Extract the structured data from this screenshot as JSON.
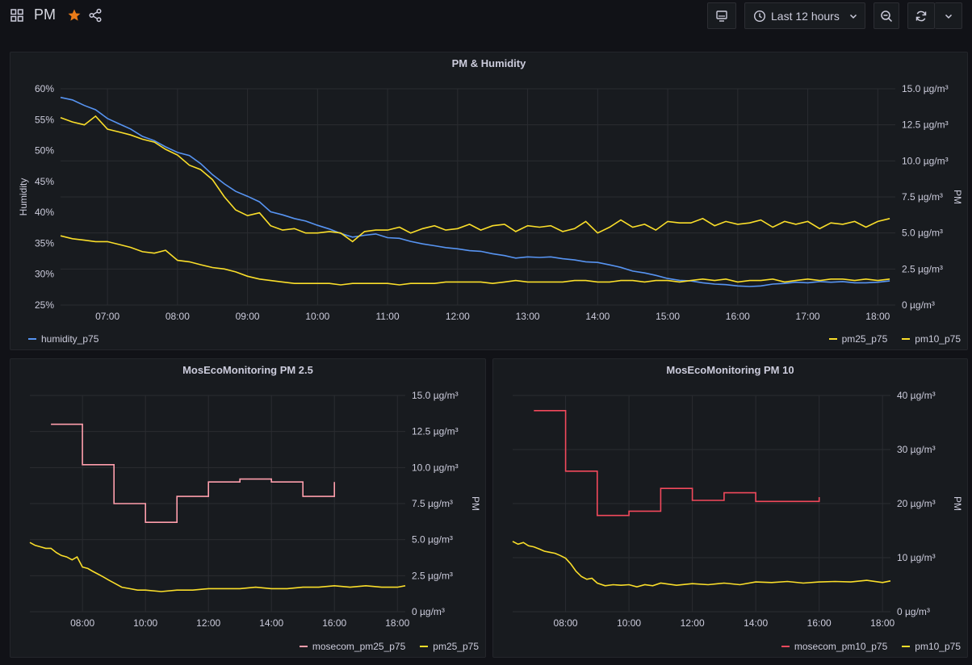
{
  "topbar": {
    "title": "PM",
    "time_range": "Last 12 hours"
  },
  "colors": {
    "humidity": "#5794f2",
    "pm25": "#fade2a",
    "pm10": "#fade2a",
    "mosecom_pm25": "#ff9eac",
    "mosecom_pm10": "#f2495c",
    "star": "#eb7b18"
  },
  "chart_data": [
    {
      "id": "pm_humidity",
      "type": "line",
      "title": "PM & Humidity",
      "ylabel": "Humidity",
      "y2label": "PM",
      "xlim": [
        6.33,
        18.25
      ],
      "ylim": [
        25,
        60
      ],
      "y2lim": [
        0,
        15
      ],
      "x_ticks": [
        "07:00",
        "08:00",
        "09:00",
        "10:00",
        "11:00",
        "12:00",
        "13:00",
        "14:00",
        "15:00",
        "16:00",
        "17:00",
        "18:00"
      ],
      "y_ticks": [
        "25%",
        "30%",
        "35%",
        "40%",
        "45%",
        "50%",
        "55%",
        "60%"
      ],
      "y2_ticks": [
        "0 µg/m³",
        "2.5 µg/m³",
        "5.0 µg/m³",
        "7.5 µg/m³",
        "10.0 µg/m³",
        "12.5 µg/m³",
        "15.0 µg/m³"
      ],
      "series": [
        {
          "name": "humidity_p75",
          "axis": "left",
          "x": [
            6.33,
            6.5,
            6.67,
            6.83,
            7.0,
            7.17,
            7.33,
            7.5,
            7.67,
            7.83,
            8.0,
            8.17,
            8.33,
            8.5,
            8.67,
            8.83,
            9.0,
            9.17,
            9.33,
            9.5,
            9.67,
            9.83,
            10.0,
            10.17,
            10.33,
            10.5,
            10.67,
            10.83,
            11.0,
            11.17,
            11.33,
            11.5,
            11.67,
            11.83,
            12.0,
            12.17,
            12.33,
            12.5,
            12.67,
            12.83,
            13.0,
            13.17,
            13.33,
            13.5,
            13.67,
            13.83,
            14.0,
            14.17,
            14.33,
            14.5,
            14.67,
            14.83,
            15.0,
            15.17,
            15.33,
            15.5,
            15.67,
            15.83,
            16.0,
            16.17,
            16.33,
            16.5,
            16.67,
            16.83,
            17.0,
            17.17,
            17.33,
            17.5,
            17.67,
            17.83,
            18.0,
            18.17
          ],
          "values": [
            58.6,
            58.2,
            57.3,
            56.6,
            55.2,
            54.3,
            53.5,
            52.3,
            51.6,
            50.6,
            49.7,
            49.2,
            47.9,
            46.1,
            44.6,
            43.4,
            42.6,
            41.7,
            40.1,
            39.6,
            39.0,
            38.6,
            37.9,
            37.3,
            36.6,
            36.0,
            36.3,
            36.5,
            35.9,
            35.8,
            35.3,
            34.9,
            34.6,
            34.3,
            34.1,
            33.8,
            33.7,
            33.3,
            33.0,
            32.6,
            32.8,
            32.7,
            32.8,
            32.5,
            32.3,
            32.0,
            31.9,
            31.5,
            31.1,
            30.5,
            30.2,
            29.8,
            29.3,
            29.0,
            28.9,
            28.6,
            28.4,
            28.3,
            28.1,
            28.0,
            28.1,
            28.4,
            28.5,
            28.7,
            28.6,
            28.8,
            28.7,
            28.8,
            28.6,
            28.6,
            28.7,
            28.9
          ]
        },
        {
          "name": "pm25_p75",
          "axis": "right",
          "x": [
            6.33,
            6.5,
            6.67,
            6.83,
            7.0,
            7.17,
            7.33,
            7.5,
            7.67,
            7.83,
            8.0,
            8.17,
            8.33,
            8.5,
            8.67,
            8.83,
            9.0,
            9.17,
            9.33,
            9.5,
            9.67,
            9.83,
            10.0,
            10.17,
            10.33,
            10.5,
            10.67,
            10.83,
            11.0,
            11.17,
            11.33,
            11.5,
            11.67,
            11.83,
            12.0,
            12.17,
            12.33,
            12.5,
            12.67,
            12.83,
            13.0,
            13.17,
            13.33,
            13.5,
            13.67,
            13.83,
            14.0,
            14.17,
            14.33,
            14.5,
            14.67,
            14.83,
            15.0,
            15.17,
            15.33,
            15.5,
            15.67,
            15.83,
            16.0,
            16.17,
            16.33,
            16.5,
            16.67,
            16.83,
            17.0,
            17.17,
            17.33,
            17.5,
            17.67,
            17.83,
            18.0,
            18.17
          ],
          "values": [
            4.8,
            4.6,
            4.5,
            4.4,
            4.4,
            4.2,
            4.0,
            3.7,
            3.6,
            3.8,
            3.1,
            3.0,
            2.8,
            2.6,
            2.5,
            2.3,
            2.0,
            1.8,
            1.7,
            1.6,
            1.5,
            1.5,
            1.5,
            1.5,
            1.4,
            1.5,
            1.5,
            1.5,
            1.5,
            1.4,
            1.5,
            1.5,
            1.5,
            1.6,
            1.6,
            1.6,
            1.6,
            1.5,
            1.6,
            1.7,
            1.6,
            1.6,
            1.6,
            1.6,
            1.7,
            1.7,
            1.6,
            1.6,
            1.7,
            1.7,
            1.6,
            1.7,
            1.7,
            1.6,
            1.7,
            1.8,
            1.7,
            1.8,
            1.6,
            1.7,
            1.7,
            1.8,
            1.6,
            1.7,
            1.8,
            1.7,
            1.8,
            1.8,
            1.7,
            1.8,
            1.7,
            1.8
          ]
        },
        {
          "name": "pm10_p75",
          "axis": "right",
          "x": [
            6.33,
            6.5,
            6.67,
            6.83,
            7.0,
            7.17,
            7.33,
            7.5,
            7.67,
            7.83,
            8.0,
            8.17,
            8.33,
            8.5,
            8.67,
            8.83,
            9.0,
            9.17,
            9.33,
            9.5,
            9.67,
            9.83,
            10.0,
            10.17,
            10.33,
            10.5,
            10.67,
            10.83,
            11.0,
            11.17,
            11.33,
            11.5,
            11.67,
            11.83,
            12.0,
            12.17,
            12.33,
            12.5,
            12.67,
            12.83,
            13.0,
            13.17,
            13.33,
            13.5,
            13.67,
            13.83,
            14.0,
            14.17,
            14.33,
            14.5,
            14.67,
            14.83,
            15.0,
            15.17,
            15.33,
            15.5,
            15.67,
            15.83,
            16.0,
            16.17,
            16.33,
            16.5,
            16.67,
            16.83,
            17.0,
            17.17,
            17.33,
            17.5,
            17.67,
            17.83,
            18.0,
            18.17
          ],
          "values": [
            13.0,
            12.7,
            12.5,
            13.1,
            12.2,
            12.0,
            11.8,
            11.5,
            11.3,
            10.8,
            10.4,
            9.7,
            9.4,
            8.7,
            7.5,
            6.6,
            6.2,
            6.4,
            5.5,
            5.2,
            5.3,
            5.0,
            5.0,
            5.1,
            5.0,
            4.4,
            5.1,
            5.2,
            5.2,
            5.4,
            5.0,
            5.3,
            5.5,
            5.2,
            5.3,
            5.6,
            5.2,
            5.5,
            5.6,
            5.1,
            5.5,
            5.4,
            5.5,
            5.1,
            5.3,
            5.8,
            5.0,
            5.4,
            5.9,
            5.4,
            5.6,
            5.2,
            5.8,
            5.7,
            5.7,
            6.0,
            5.5,
            5.8,
            5.6,
            5.7,
            5.9,
            5.4,
            5.8,
            5.6,
            5.8,
            5.3,
            5.7,
            5.6,
            5.8,
            5.4,
            5.8,
            6.0
          ]
        }
      ],
      "legend_left": [
        "humidity_p75"
      ],
      "legend_right": [
        "pm25_p75",
        "pm10_p75"
      ]
    },
    {
      "id": "mosecom_pm25",
      "type": "line",
      "title": "MosEcoMonitoring PM 2.5",
      "y2label": "PM",
      "xlim": [
        6.33,
        18.25
      ],
      "y2lim": [
        0,
        15
      ],
      "x_ticks": [
        "08:00",
        "10:00",
        "12:00",
        "14:00",
        "16:00",
        "18:00"
      ],
      "y2_ticks": [
        "0 µg/m³",
        "2.5 µg/m³",
        "5.0 µg/m³",
        "7.5 µg/m³",
        "10.0 µg/m³",
        "12.5 µg/m³",
        "15.0 µg/m³"
      ],
      "series": [
        {
          "name": "mosecom_pm25_p75",
          "step": true,
          "x": [
            7.0,
            8.0,
            9.0,
            10.0,
            11.0,
            12.0,
            13.0,
            14.0,
            15.0,
            16.0
          ],
          "values": [
            13.0,
            10.2,
            7.5,
            6.2,
            8.0,
            9.0,
            9.2,
            9.0,
            8.0,
            9.0
          ]
        },
        {
          "name": "pm25_p75",
          "x": [
            6.33,
            6.5,
            6.67,
            6.83,
            7.0,
            7.17,
            7.33,
            7.5,
            7.67,
            7.83,
            8.0,
            8.17,
            8.33,
            8.5,
            8.67,
            8.83,
            9.0,
            9.25,
            9.5,
            9.75,
            10.0,
            10.5,
            11.0,
            11.5,
            12.0,
            12.5,
            13.0,
            13.5,
            14.0,
            14.5,
            15.0,
            15.5,
            16.0,
            16.5,
            17.0,
            17.5,
            18.0,
            18.25
          ],
          "values": [
            4.8,
            4.6,
            4.5,
            4.4,
            4.4,
            4.1,
            3.9,
            3.8,
            3.6,
            3.8,
            3.1,
            3.0,
            2.8,
            2.6,
            2.4,
            2.2,
            2.0,
            1.7,
            1.6,
            1.5,
            1.5,
            1.4,
            1.5,
            1.5,
            1.6,
            1.6,
            1.6,
            1.7,
            1.6,
            1.6,
            1.7,
            1.7,
            1.8,
            1.7,
            1.8,
            1.7,
            1.7,
            1.8
          ]
        }
      ],
      "legend_right": [
        "mosecom_pm25_p75",
        "pm25_p75"
      ]
    },
    {
      "id": "mosecom_pm10",
      "type": "line",
      "title": "MosEcoMonitoring PM 10",
      "y2label": "PM",
      "xlim": [
        6.33,
        18.25
      ],
      "y2lim": [
        0,
        40
      ],
      "x_ticks": [
        "08:00",
        "10:00",
        "12:00",
        "14:00",
        "16:00",
        "18:00"
      ],
      "y2_ticks": [
        "0 µg/m³",
        "10 µg/m³",
        "20 µg/m³",
        "30 µg/m³",
        "40 µg/m³"
      ],
      "series": [
        {
          "name": "mosecom_pm10_p75",
          "step": true,
          "x": [
            7.0,
            8.0,
            9.0,
            10.0,
            11.0,
            12.0,
            13.0,
            14.0,
            15.0,
            16.0
          ],
          "values": [
            37.2,
            26.0,
            17.8,
            18.6,
            22.8,
            20.6,
            22.0,
            20.4,
            20.4,
            21.2
          ]
        },
        {
          "name": "pm10_p75",
          "x": [
            6.33,
            6.5,
            6.67,
            6.83,
            7.0,
            7.17,
            7.33,
            7.5,
            7.67,
            7.83,
            8.0,
            8.17,
            8.33,
            8.5,
            8.67,
            8.83,
            9.0,
            9.25,
            9.5,
            9.75,
            10.0,
            10.25,
            10.5,
            10.75,
            11.0,
            11.5,
            12.0,
            12.5,
            13.0,
            13.5,
            14.0,
            14.5,
            15.0,
            15.5,
            16.0,
            16.5,
            17.0,
            17.5,
            18.0,
            18.25
          ],
          "values": [
            13.0,
            12.5,
            12.8,
            12.2,
            12.0,
            11.6,
            11.2,
            11.0,
            10.8,
            10.4,
            9.9,
            8.8,
            7.5,
            6.5,
            6.0,
            6.2,
            5.3,
            4.8,
            5.0,
            4.9,
            5.0,
            4.6,
            5.0,
            4.8,
            5.3,
            4.9,
            5.2,
            5.0,
            5.3,
            5.0,
            5.5,
            5.4,
            5.6,
            5.3,
            5.5,
            5.6,
            5.5,
            5.8,
            5.4,
            5.7
          ]
        }
      ],
      "legend_right": [
        "mosecom_pm10_p75",
        "pm10_p75"
      ]
    }
  ]
}
